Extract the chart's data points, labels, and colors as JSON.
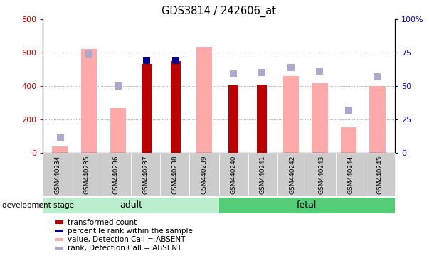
{
  "title": "GDS3814 / 242606_at",
  "categories": [
    "GSM440234",
    "GSM440235",
    "GSM440236",
    "GSM440237",
    "GSM440238",
    "GSM440239",
    "GSM440240",
    "GSM440241",
    "GSM440242",
    "GSM440243",
    "GSM440244",
    "GSM440245"
  ],
  "transformed_count": [
    null,
    null,
    null,
    530,
    550,
    null,
    405,
    405,
    null,
    null,
    null,
    null
  ],
  "percentile_rank_right": [
    null,
    null,
    null,
    69,
    69,
    null,
    null,
    null,
    null,
    null,
    null,
    null
  ],
  "absent_value": [
    40,
    620,
    270,
    null,
    null,
    635,
    null,
    null,
    460,
    415,
    155,
    400
  ],
  "absent_rank_right": [
    11,
    74,
    50,
    null,
    null,
    null,
    59,
    60,
    64,
    61,
    32,
    57
  ],
  "adult_count": 6,
  "fetal_count": 6,
  "left_ylim": [
    0,
    800
  ],
  "right_ylim": [
    0,
    100
  ],
  "left_yticks": [
    0,
    200,
    400,
    600,
    800
  ],
  "right_yticks": [
    0,
    25,
    50,
    75,
    100
  ],
  "right_yticklabels": [
    "0",
    "25",
    "50",
    "75",
    "100%"
  ],
  "left_ycolor": "#cc0000",
  "right_ycolor": "#0000bb",
  "adult_bg": "#bbeecc",
  "fetal_bg": "#55cc77",
  "xtick_bg": "#cccccc",
  "legend_items": [
    {
      "label": "transformed count",
      "color": "#bb0000"
    },
    {
      "label": "percentile rank within the sample",
      "color": "#00008b"
    },
    {
      "label": "value, Detection Call = ABSENT",
      "color": "#ffaaaa"
    },
    {
      "label": "rank, Detection Call = ABSENT",
      "color": "#aaaacc"
    }
  ]
}
